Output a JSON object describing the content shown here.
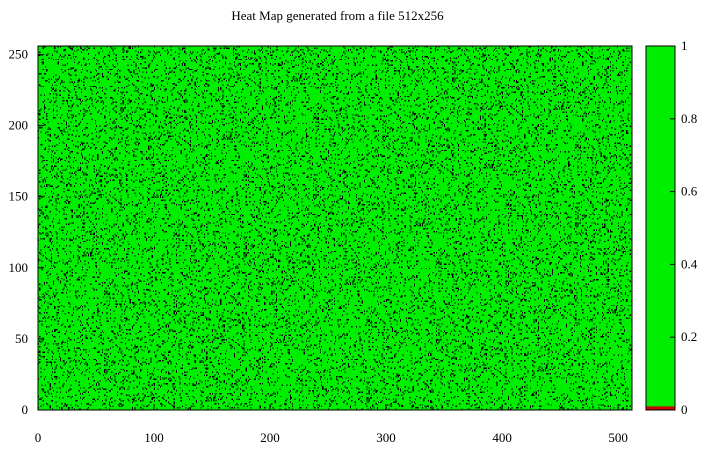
{
  "chart_data": {
    "type": "heatmap",
    "title": "Heat Map generated from a file 512x256",
    "xlabel": "",
    "ylabel": "",
    "grid_size": [
      512,
      256
    ],
    "xlim": [
      0,
      512
    ],
    "ylim": [
      0,
      256
    ],
    "x_ticks": [
      0,
      100,
      200,
      300,
      400,
      500
    ],
    "y_ticks": [
      0,
      50,
      100,
      150,
      200,
      250
    ],
    "colorbar": {
      "range": [
        0,
        1
      ],
      "ticks": [
        0,
        0.2,
        0.4,
        0.6,
        0.8,
        1
      ],
      "tick_labels": [
        "0",
        "0.2",
        "0.4",
        "0.6",
        "0.8",
        "1"
      ],
      "low_color": "#cc0000",
      "high_color": "#00ee00"
    },
    "cell_values": "binary",
    "dominant_value": 1,
    "fraction_at_value_1": 0.88,
    "cell_colors": {
      "value_1": "#00ee00",
      "value_0": "#000000"
    }
  }
}
